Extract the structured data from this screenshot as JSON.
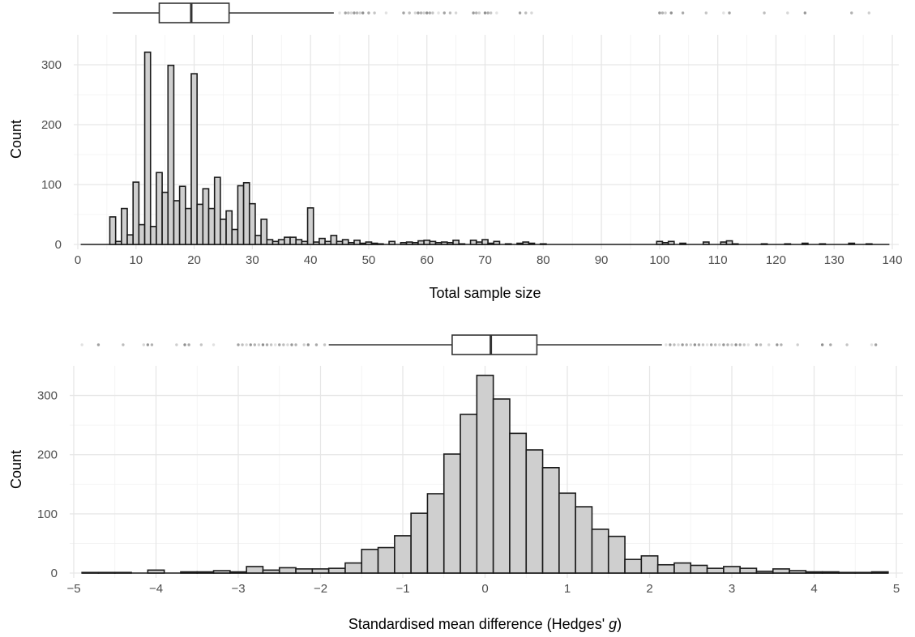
{
  "chart_data": [
    {
      "type": "bar",
      "xlabel": "Total sample size",
      "ylabel": "Count",
      "xlim": [
        0,
        140
      ],
      "ylim": [
        0,
        350
      ],
      "x_ticks": [
        0,
        10,
        20,
        30,
        40,
        50,
        60,
        70,
        80,
        90,
        100,
        110,
        120,
        130,
        140
      ],
      "y_ticks": [
        0,
        100,
        200,
        300
      ],
      "bin_width": 1,
      "bars": [
        {
          "x": 6,
          "y": 46
        },
        {
          "x": 7,
          "y": 5
        },
        {
          "x": 8,
          "y": 60
        },
        {
          "x": 9,
          "y": 16
        },
        {
          "x": 10,
          "y": 104
        },
        {
          "x": 11,
          "y": 33
        },
        {
          "x": 12,
          "y": 321
        },
        {
          "x": 13,
          "y": 30
        },
        {
          "x": 14,
          "y": 120
        },
        {
          "x": 15,
          "y": 87
        },
        {
          "x": 16,
          "y": 299
        },
        {
          "x": 17,
          "y": 73
        },
        {
          "x": 18,
          "y": 97
        },
        {
          "x": 19,
          "y": 60
        },
        {
          "x": 20,
          "y": 285
        },
        {
          "x": 21,
          "y": 67
        },
        {
          "x": 22,
          "y": 93
        },
        {
          "x": 23,
          "y": 60
        },
        {
          "x": 24,
          "y": 112
        },
        {
          "x": 25,
          "y": 42
        },
        {
          "x": 26,
          "y": 56
        },
        {
          "x": 27,
          "y": 25
        },
        {
          "x": 28,
          "y": 98
        },
        {
          "x": 29,
          "y": 103
        },
        {
          "x": 30,
          "y": 68
        },
        {
          "x": 31,
          "y": 15
        },
        {
          "x": 32,
          "y": 42
        },
        {
          "x": 33,
          "y": 8
        },
        {
          "x": 34,
          "y": 5
        },
        {
          "x": 35,
          "y": 8
        },
        {
          "x": 36,
          "y": 12
        },
        {
          "x": 37,
          "y": 12
        },
        {
          "x": 38,
          "y": 8
        },
        {
          "x": 39,
          "y": 5
        },
        {
          "x": 40,
          "y": 61
        },
        {
          "x": 41,
          "y": 4
        },
        {
          "x": 42,
          "y": 10
        },
        {
          "x": 43,
          "y": 5
        },
        {
          "x": 44,
          "y": 15
        },
        {
          "x": 45,
          "y": 5
        },
        {
          "x": 46,
          "y": 8
        },
        {
          "x": 47,
          "y": 3
        },
        {
          "x": 48,
          "y": 7
        },
        {
          "x": 49,
          "y": 2
        },
        {
          "x": 50,
          "y": 4
        },
        {
          "x": 51,
          "y": 2
        },
        {
          "x": 52,
          "y": 1
        },
        {
          "x": 54,
          "y": 5
        },
        {
          "x": 56,
          "y": 3
        },
        {
          "x": 57,
          "y": 4
        },
        {
          "x": 58,
          "y": 3
        },
        {
          "x": 59,
          "y": 6
        },
        {
          "x": 60,
          "y": 7
        },
        {
          "x": 61,
          "y": 5
        },
        {
          "x": 62,
          "y": 3
        },
        {
          "x": 63,
          "y": 4
        },
        {
          "x": 64,
          "y": 3
        },
        {
          "x": 65,
          "y": 7
        },
        {
          "x": 66,
          "y": 1
        },
        {
          "x": 68,
          "y": 7
        },
        {
          "x": 69,
          "y": 4
        },
        {
          "x": 70,
          "y": 8
        },
        {
          "x": 71,
          "y": 2
        },
        {
          "x": 72,
          "y": 5
        },
        {
          "x": 74,
          "y": 1
        },
        {
          "x": 76,
          "y": 2
        },
        {
          "x": 77,
          "y": 4
        },
        {
          "x": 78,
          "y": 2
        },
        {
          "x": 80,
          "y": 1
        },
        {
          "x": 100,
          "y": 5
        },
        {
          "x": 101,
          "y": 3
        },
        {
          "x": 102,
          "y": 5
        },
        {
          "x": 104,
          "y": 2
        },
        {
          "x": 108,
          "y": 4
        },
        {
          "x": 111,
          "y": 4
        },
        {
          "x": 112,
          "y": 6
        },
        {
          "x": 113,
          "y": 1
        },
        {
          "x": 118,
          "y": 1
        },
        {
          "x": 122,
          "y": 1
        },
        {
          "x": 125,
          "y": 2
        },
        {
          "x": 128,
          "y": 1
        },
        {
          "x": 133,
          "y": 2
        },
        {
          "x": 136,
          "y": 1
        }
      ],
      "boxplot": {
        "q1": 14,
        "median": 19.5,
        "q3": 26,
        "whisker_low": 6,
        "whisker_high": 44
      },
      "outliers": [
        45,
        46,
        46.5,
        47,
        47.5,
        48,
        48.5,
        49,
        50,
        51,
        53,
        56,
        57,
        58,
        58.5,
        59,
        59.5,
        60,
        60.5,
        61,
        62,
        63,
        64,
        65,
        68,
        68.5,
        69,
        70,
        70.5,
        71,
        72,
        76,
        77,
        78,
        100,
        100.5,
        101,
        102,
        104,
        108,
        111,
        112,
        118,
        122,
        125,
        133,
        136
      ]
    },
    {
      "type": "bar",
      "xlabel": "Standardised mean difference (Hedges' g)",
      "xlabel_parts": [
        "Standardised mean difference (Hedges' ",
        "g",
        ")"
      ],
      "ylabel": "Count",
      "xlim": [
        -5,
        5
      ],
      "ylim": [
        0,
        350
      ],
      "x_ticks": [
        -5,
        -4,
        -3,
        -2,
        -1,
        0,
        1,
        2,
        3,
        4,
        5
      ],
      "x_tick_labels": [
        "−5",
        "−4",
        "−3",
        "−2",
        "−1",
        "0",
        "1",
        "2",
        "3",
        "4",
        "5"
      ],
      "y_ticks": [
        0,
        100,
        200,
        300
      ],
      "bin_width": 0.2,
      "bars": [
        {
          "x": -4.8,
          "y": 1
        },
        {
          "x": -4.6,
          "y": 1
        },
        {
          "x": -4.4,
          "y": 1
        },
        {
          "x": -4.2,
          "y": 0
        },
        {
          "x": -4.0,
          "y": 5
        },
        {
          "x": -3.8,
          "y": 0
        },
        {
          "x": -3.6,
          "y": 2
        },
        {
          "x": -3.4,
          "y": 2
        },
        {
          "x": -3.2,
          "y": 4
        },
        {
          "x": -3.0,
          "y": 2
        },
        {
          "x": -2.8,
          "y": 11
        },
        {
          "x": -2.6,
          "y": 5
        },
        {
          "x": -2.4,
          "y": 9
        },
        {
          "x": -2.2,
          "y": 7
        },
        {
          "x": -2.0,
          "y": 7
        },
        {
          "x": -1.8,
          "y": 8
        },
        {
          "x": -1.6,
          "y": 17
        },
        {
          "x": -1.4,
          "y": 40
        },
        {
          "x": -1.2,
          "y": 43
        },
        {
          "x": -1.0,
          "y": 63
        },
        {
          "x": -0.8,
          "y": 101
        },
        {
          "x": -0.6,
          "y": 134
        },
        {
          "x": -0.4,
          "y": 201
        },
        {
          "x": -0.2,
          "y": 268
        },
        {
          "x": 0.0,
          "y": 334
        },
        {
          "x": 0.2,
          "y": 294
        },
        {
          "x": 0.4,
          "y": 236
        },
        {
          "x": 0.6,
          "y": 208
        },
        {
          "x": 0.8,
          "y": 178
        },
        {
          "x": 1.0,
          "y": 135
        },
        {
          "x": 1.2,
          "y": 112
        },
        {
          "x": 1.4,
          "y": 74
        },
        {
          "x": 1.6,
          "y": 62
        },
        {
          "x": 1.8,
          "y": 23
        },
        {
          "x": 2.0,
          "y": 29
        },
        {
          "x": 2.2,
          "y": 14
        },
        {
          "x": 2.4,
          "y": 17
        },
        {
          "x": 2.6,
          "y": 13
        },
        {
          "x": 2.8,
          "y": 8
        },
        {
          "x": 3.0,
          "y": 11
        },
        {
          "x": 3.2,
          "y": 8
        },
        {
          "x": 3.4,
          "y": 3
        },
        {
          "x": 3.6,
          "y": 7
        },
        {
          "x": 3.8,
          "y": 4
        },
        {
          "x": 4.0,
          "y": 2
        },
        {
          "x": 4.2,
          "y": 2
        },
        {
          "x": 4.4,
          "y": 1
        },
        {
          "x": 4.6,
          "y": 1
        },
        {
          "x": 4.8,
          "y": 2
        }
      ],
      "boxplot": {
        "q1": -0.4,
        "median": 0.07,
        "q3": 0.63,
        "whisker_low": -1.9,
        "whisker_high": 2.15
      },
      "outliers": [
        -4.9,
        -4.7,
        -4.4,
        -4.15,
        -4.1,
        -4.05,
        -3.75,
        -3.65,
        -3.6,
        -3.45,
        -3.3,
        -3.0,
        -2.95,
        -2.9,
        -2.85,
        -2.8,
        -2.75,
        -2.7,
        -2.65,
        -2.6,
        -2.55,
        -2.5,
        -2.45,
        -2.4,
        -2.35,
        -2.3,
        -2.2,
        -2.15,
        -2.05,
        -1.95,
        2.2,
        2.25,
        2.3,
        2.35,
        2.4,
        2.45,
        2.5,
        2.55,
        2.6,
        2.65,
        2.7,
        2.75,
        2.8,
        2.85,
        2.9,
        2.95,
        3.0,
        3.05,
        3.1,
        3.15,
        3.2,
        3.3,
        3.35,
        3.45,
        3.55,
        3.6,
        3.8,
        4.1,
        4.2,
        4.4,
        4.7,
        4.75
      ]
    }
  ]
}
